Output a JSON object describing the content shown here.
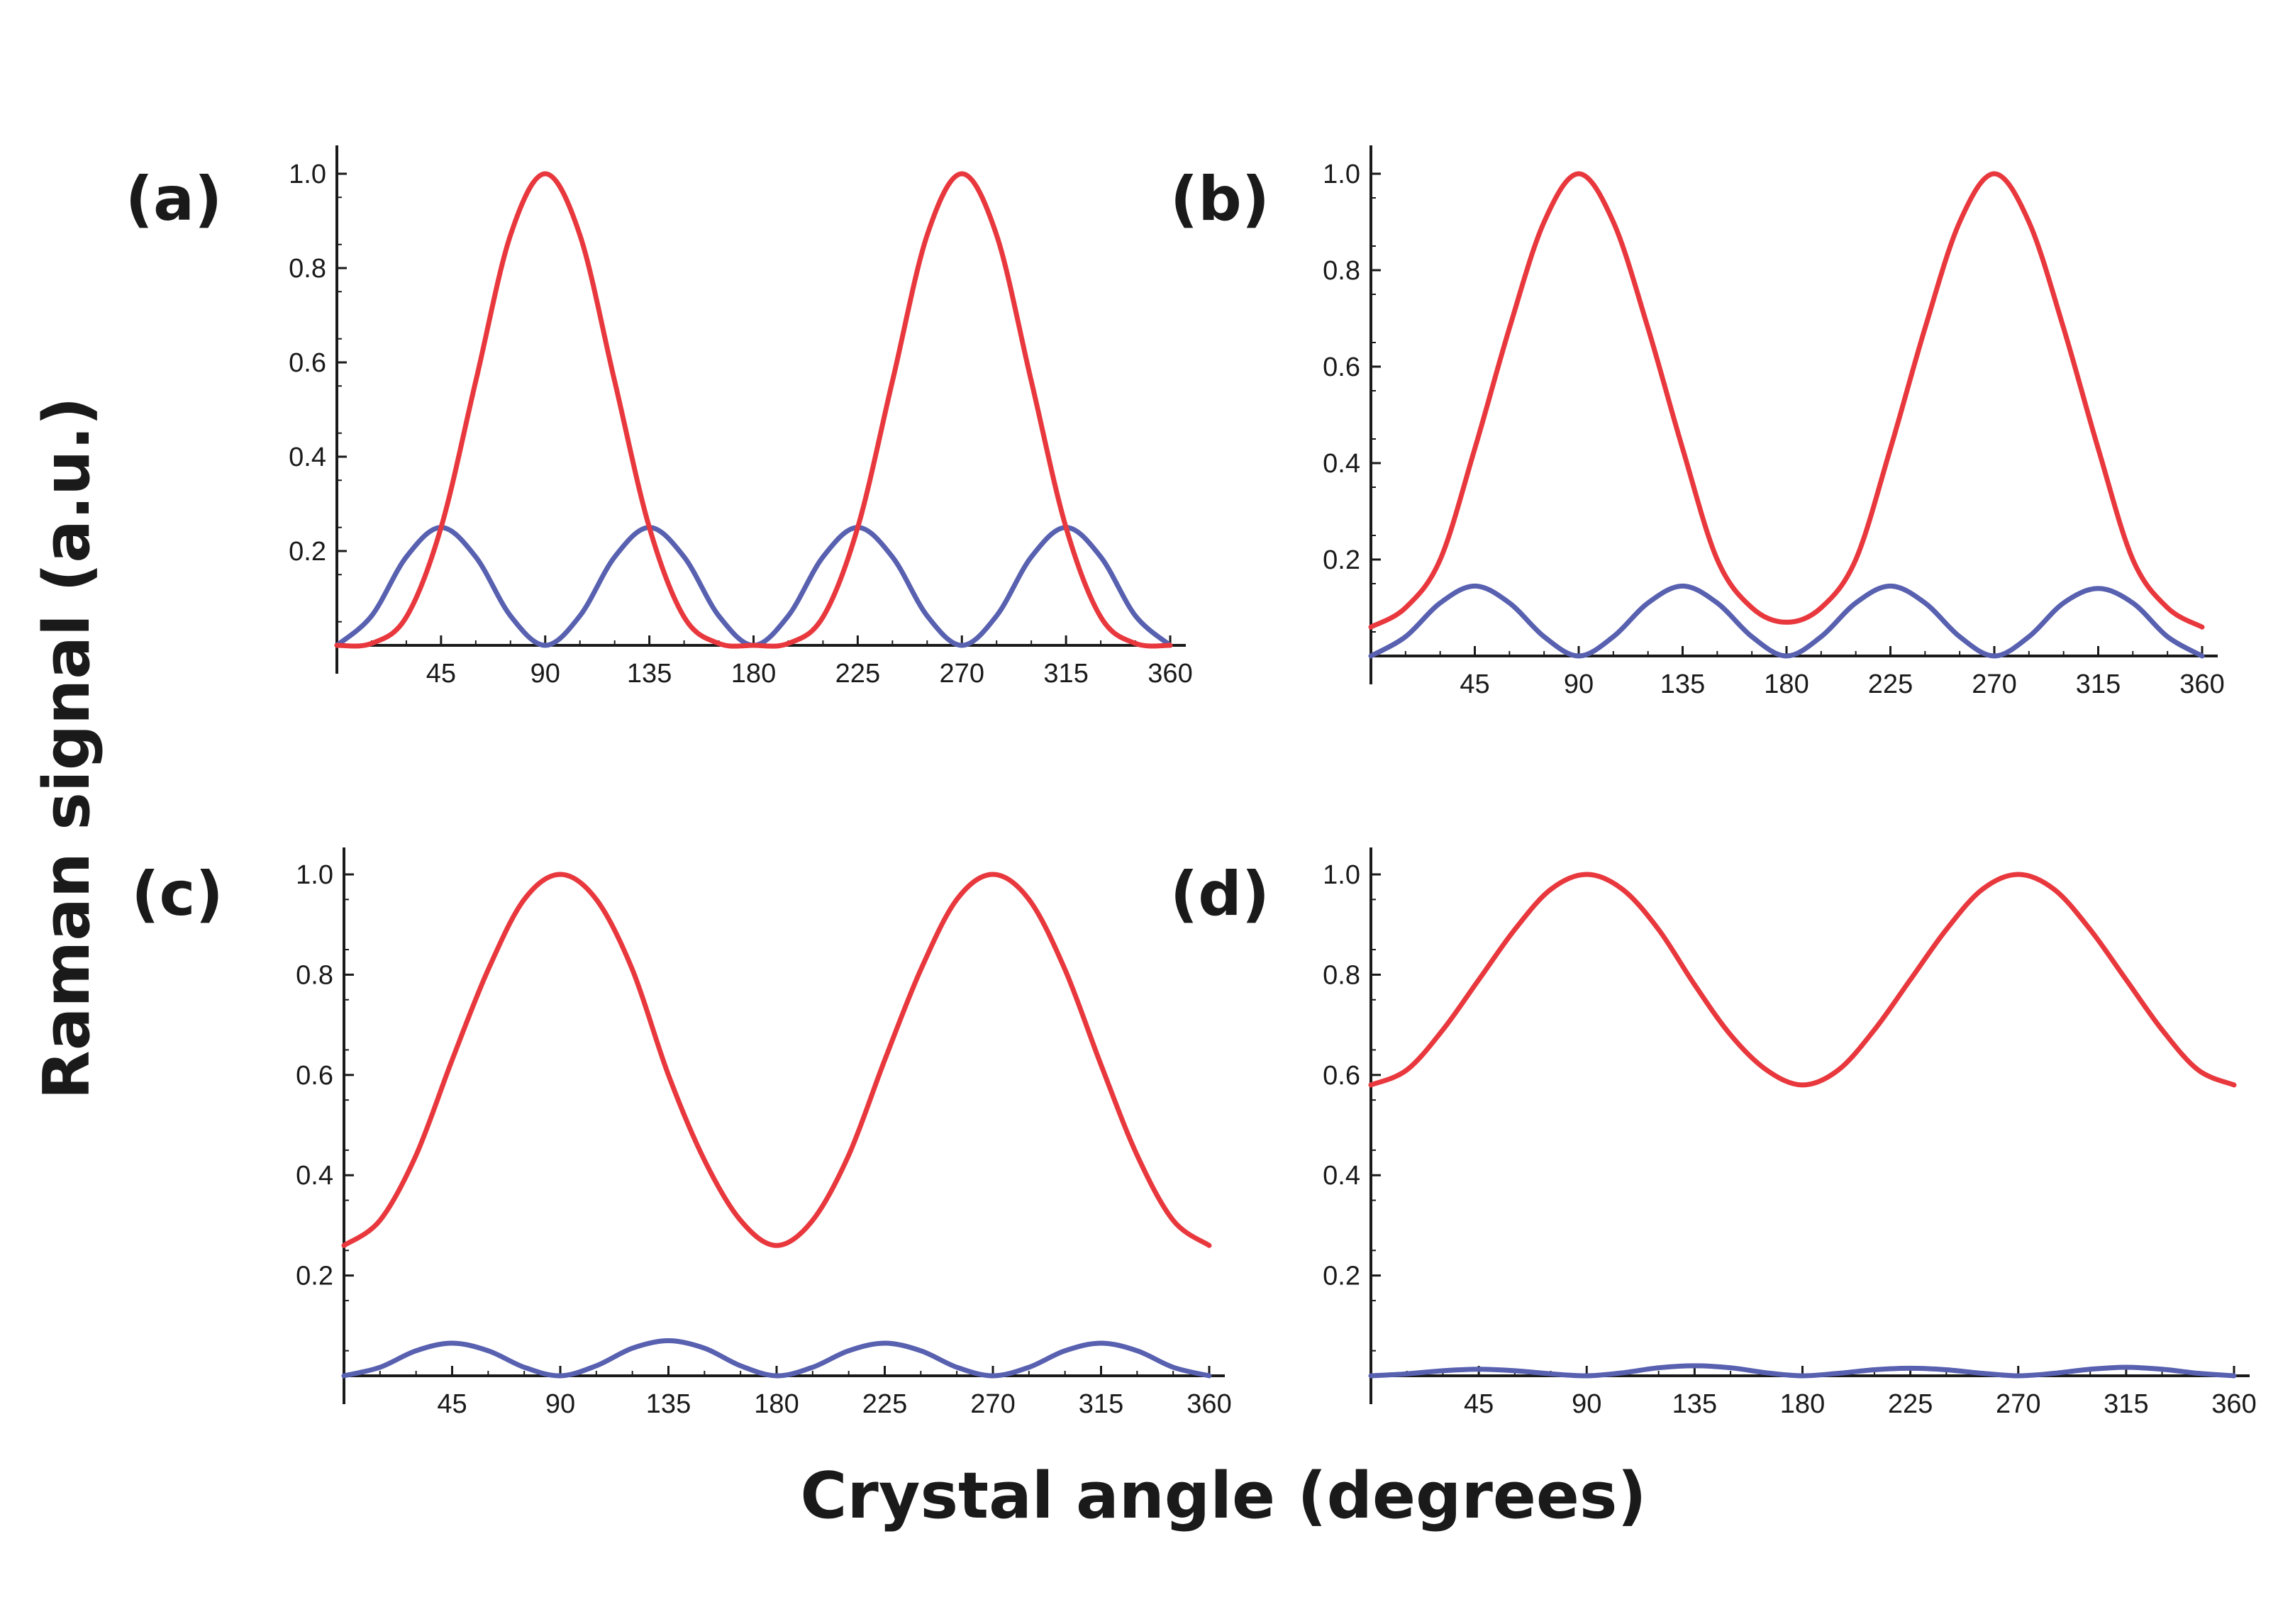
{
  "figure": {
    "xlabel": "Crystal angle (degrees)",
    "ylabel": "Raman signal (a.u.)",
    "colors": {
      "red_series": "#e8383d",
      "blue_series": "#5860b0",
      "axes": "#1a1a1a"
    }
  },
  "chart_data": [
    {
      "type": "line",
      "panel_label": "(a)",
      "xlim": [
        0,
        360
      ],
      "ylim": [
        0,
        1.05
      ],
      "x_ticks": [
        "45",
        "90",
        "135",
        "180",
        "225",
        "270",
        "315",
        "360"
      ],
      "y_ticks": [
        "0.2",
        "0.4",
        "0.6",
        "0.8",
        "1.0"
      ],
      "series": [
        {
          "color": "#e8383d",
          "x": [
            0,
            15,
            30,
            45,
            60,
            75,
            90,
            105,
            120,
            135,
            150,
            165,
            180,
            195,
            210,
            225,
            240,
            255,
            270,
            285,
            300,
            315,
            330,
            345,
            360
          ],
          "y": [
            0,
            0.004,
            0.06,
            0.25,
            0.56,
            0.87,
            1.0,
            0.87,
            0.56,
            0.25,
            0.06,
            0.004,
            0,
            0.004,
            0.06,
            0.25,
            0.56,
            0.87,
            1.0,
            0.87,
            0.56,
            0.25,
            0.06,
            0.004,
            0
          ]
        },
        {
          "color": "#5860b0",
          "x": [
            0,
            15,
            30,
            45,
            60,
            75,
            90,
            105,
            120,
            135,
            150,
            165,
            180,
            195,
            210,
            225,
            240,
            255,
            270,
            285,
            300,
            315,
            330,
            345,
            360
          ],
          "y": [
            0,
            0.0625,
            0.1875,
            0.25,
            0.1875,
            0.0625,
            0,
            0.0625,
            0.1875,
            0.25,
            0.1875,
            0.0625,
            0,
            0.0625,
            0.1875,
            0.25,
            0.1875,
            0.0625,
            0,
            0.0625,
            0.1875,
            0.25,
            0.1875,
            0.0625,
            0
          ]
        }
      ]
    },
    {
      "type": "line",
      "panel_label": "(b)",
      "xlim": [
        0,
        360
      ],
      "ylim": [
        0,
        1.05
      ],
      "x_ticks": [
        "45",
        "90",
        "135",
        "180",
        "225",
        "270",
        "315",
        "360"
      ],
      "y_ticks": [
        "0.2",
        "0.4",
        "0.6",
        "0.8",
        "1.0"
      ],
      "series": [
        {
          "color": "#e8383d",
          "x": [
            0,
            15,
            30,
            45,
            60,
            75,
            90,
            105,
            120,
            135,
            150,
            165,
            180,
            195,
            210,
            225,
            240,
            255,
            270,
            285,
            300,
            315,
            330,
            345,
            360
          ],
          "y": [
            0.06,
            0.1,
            0.2,
            0.43,
            0.68,
            0.9,
            1.0,
            0.9,
            0.68,
            0.43,
            0.2,
            0.1,
            0.07,
            0.1,
            0.2,
            0.43,
            0.68,
            0.9,
            1.0,
            0.9,
            0.68,
            0.43,
            0.2,
            0.1,
            0.06
          ]
        },
        {
          "color": "#5860b0",
          "x": [
            0,
            15,
            30,
            45,
            60,
            75,
            90,
            105,
            120,
            135,
            150,
            165,
            180,
            195,
            210,
            225,
            240,
            255,
            270,
            285,
            300,
            315,
            330,
            345,
            360
          ],
          "y": [
            0,
            0.04,
            0.11,
            0.145,
            0.11,
            0.04,
            0,
            0.04,
            0.11,
            0.145,
            0.11,
            0.04,
            0,
            0.04,
            0.11,
            0.145,
            0.11,
            0.04,
            0,
            0.04,
            0.11,
            0.14,
            0.11,
            0.04,
            0
          ]
        }
      ]
    },
    {
      "type": "line",
      "panel_label": "(c)",
      "xlim": [
        0,
        360
      ],
      "ylim": [
        0,
        1.05
      ],
      "x_ticks": [
        "45",
        "90",
        "135",
        "180",
        "225",
        "270",
        "315",
        "360"
      ],
      "y_ticks": [
        "0.2",
        "0.4",
        "0.6",
        "0.8",
        "1.0"
      ],
      "series": [
        {
          "color": "#e8383d",
          "x": [
            0,
            15,
            30,
            45,
            60,
            75,
            90,
            105,
            120,
            135,
            150,
            165,
            180,
            195,
            210,
            225,
            240,
            255,
            270,
            285,
            300,
            315,
            330,
            345,
            360
          ],
          "y": [
            0.26,
            0.31,
            0.44,
            0.63,
            0.81,
            0.95,
            1.0,
            0.95,
            0.81,
            0.6,
            0.43,
            0.31,
            0.26,
            0.31,
            0.44,
            0.63,
            0.81,
            0.95,
            1.0,
            0.95,
            0.81,
            0.62,
            0.44,
            0.31,
            0.26
          ]
        },
        {
          "color": "#5860b0",
          "x": [
            0,
            15,
            30,
            45,
            60,
            75,
            90,
            105,
            120,
            135,
            150,
            165,
            180,
            195,
            210,
            225,
            240,
            255,
            270,
            285,
            300,
            315,
            330,
            345,
            360
          ],
          "y": [
            0,
            0.017,
            0.05,
            0.065,
            0.05,
            0.017,
            0,
            0.02,
            0.055,
            0.07,
            0.055,
            0.02,
            0,
            0.017,
            0.05,
            0.065,
            0.05,
            0.017,
            0,
            0.017,
            0.05,
            0.065,
            0.05,
            0.017,
            0
          ]
        }
      ]
    },
    {
      "type": "line",
      "panel_label": "(d)",
      "xlim": [
        0,
        360
      ],
      "ylim": [
        0,
        1.05
      ],
      "x_ticks": [
        "45",
        "90",
        "135",
        "180",
        "225",
        "270",
        "315",
        "360"
      ],
      "y_ticks": [
        "0.2",
        "0.4",
        "0.6",
        "0.8",
        "1.0"
      ],
      "series": [
        {
          "color": "#e8383d",
          "x": [
            0,
            15,
            30,
            45,
            60,
            75,
            90,
            105,
            120,
            135,
            150,
            165,
            180,
            195,
            210,
            225,
            240,
            255,
            270,
            285,
            300,
            315,
            330,
            345,
            360
          ],
          "y": [
            0.58,
            0.61,
            0.69,
            0.79,
            0.89,
            0.97,
            1.0,
            0.97,
            0.89,
            0.78,
            0.68,
            0.61,
            0.58,
            0.61,
            0.69,
            0.79,
            0.89,
            0.97,
            1.0,
            0.97,
            0.89,
            0.79,
            0.69,
            0.61,
            0.58
          ]
        },
        {
          "color": "#5860b0",
          "x": [
            0,
            15,
            30,
            45,
            60,
            75,
            90,
            105,
            120,
            135,
            150,
            165,
            180,
            195,
            210,
            225,
            240,
            255,
            270,
            285,
            300,
            315,
            330,
            345,
            360
          ],
          "y": [
            0,
            0.004,
            0.01,
            0.013,
            0.01,
            0.004,
            0,
            0.006,
            0.016,
            0.02,
            0.016,
            0.006,
            0,
            0.005,
            0.012,
            0.015,
            0.012,
            0.005,
            0,
            0.005,
            0.013,
            0.017,
            0.013,
            0.005,
            0
          ]
        }
      ]
    }
  ]
}
